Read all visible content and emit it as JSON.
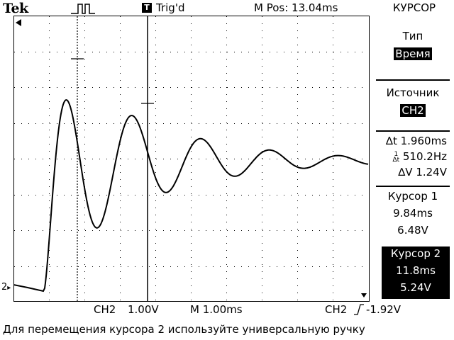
{
  "header": {
    "brand": "Tek",
    "acquire_state_icon": "acquisition-pulse-icon",
    "trigger_marker": "T",
    "trigger_status": "Trig'd",
    "main_position": "M Pos: 13.04ms",
    "menu_title": "КУРСОР"
  },
  "side_menu": {
    "type_label": "Тип",
    "type_value": "Время",
    "source_label": "Источник",
    "source_value": "CH2",
    "delta_t": "1.960ms",
    "inv_delta_t": "510.2Hz",
    "delta_v": "1.24V",
    "cursor1_label": "Курсор 1",
    "cursor1_time": "9.84ms",
    "cursor1_volt": "6.48V",
    "cursor2_label": "Курсор 2",
    "cursor2_time": "11.8ms",
    "cursor2_volt": "5.24V"
  },
  "bottom_bar": {
    "ch_label": "CH2",
    "ch_scale": "1.00V",
    "timebase": "M 1.00ms",
    "trig_source": "CH2",
    "trig_level": "-1.92V"
  },
  "message": "Для перемещения курсора 2 используйте универсальную ручку",
  "ground_marker": "2",
  "colors": {
    "trace": "#000000",
    "grid": "#000000",
    "background": "#ffffff"
  }
}
